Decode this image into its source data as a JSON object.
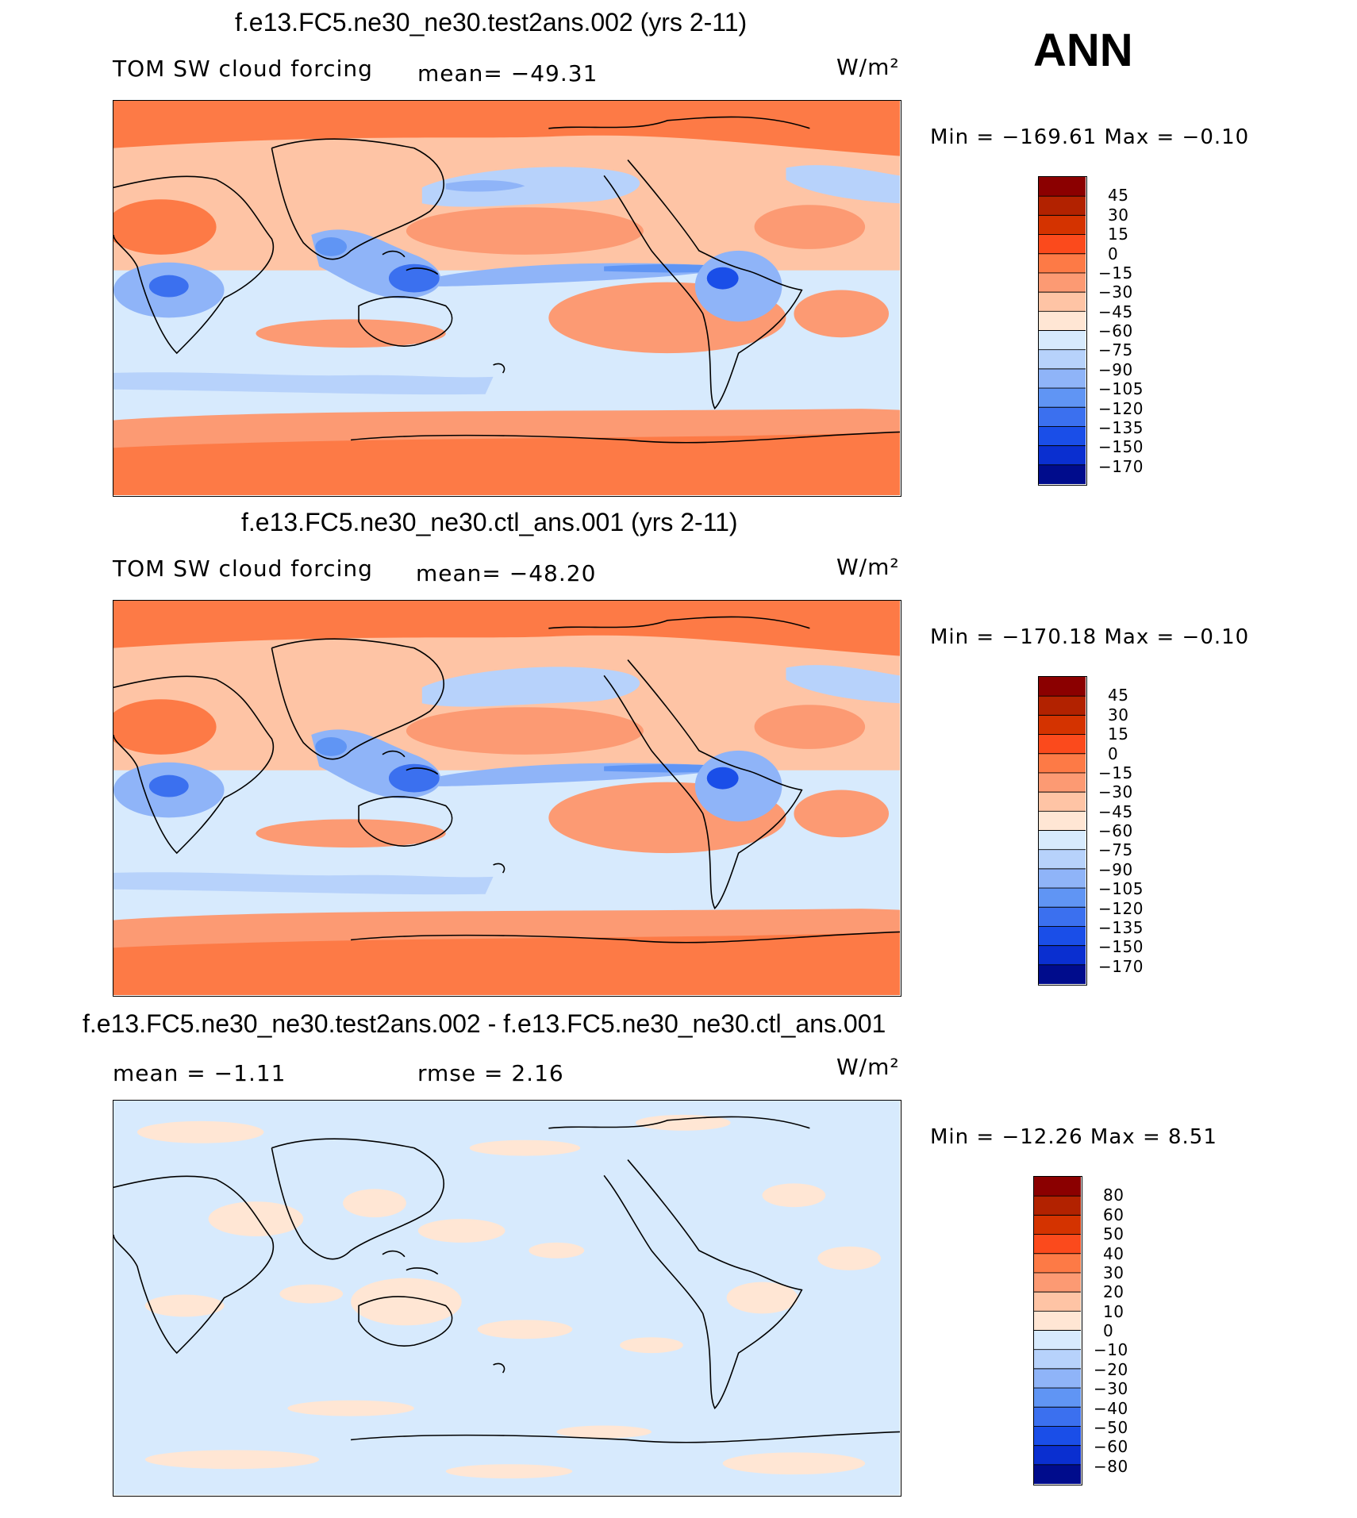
{
  "season": "ANN",
  "panels": [
    {
      "title": "f.e13.FC5.ne30_ne30.test2ans.002 (yrs 2-11)",
      "variable": "TOM SW cloud forcing",
      "stat1": "mean= −49.31",
      "stat2": "",
      "units": "W/m²",
      "minmax": "Min = −169.61 Max =   −0.10",
      "colorbar": {
        "labels": [
          "45",
          "30",
          "15",
          "0",
          "−15",
          "−30",
          "−45",
          "−60",
          "−75",
          "−90",
          "−105",
          "−120",
          "−135",
          "−150",
          "−170"
        ],
        "colors": [
          "#8b0000",
          "#b22200",
          "#d43300",
          "#fb4a1c",
          "#fd7a46",
          "#fc9a73",
          "#fec4a5",
          "#ffe6d4",
          "#d7eafd",
          "#b7d2fb",
          "#8fb4f8",
          "#6095f4",
          "#3b70ef",
          "#1a4ee8",
          "#0a2fd0",
          "#000c8c"
        ]
      }
    },
    {
      "title": "f.e13.FC5.ne30_ne30.ctl_ans.001 (yrs 2-11)",
      "variable": "TOM SW cloud forcing",
      "stat1": "mean= −48.20",
      "stat2": "",
      "units": "W/m²",
      "minmax": "Min = −170.18 Max =   −0.10",
      "colorbar": {
        "labels": [
          "45",
          "30",
          "15",
          "0",
          "−15",
          "−30",
          "−45",
          "−60",
          "−75",
          "−90",
          "−105",
          "−120",
          "−135",
          "−150",
          "−170"
        ],
        "colors": [
          "#8b0000",
          "#b22200",
          "#d43300",
          "#fb4a1c",
          "#fd7a46",
          "#fc9a73",
          "#fec4a5",
          "#ffe6d4",
          "#d7eafd",
          "#b7d2fb",
          "#8fb4f8",
          "#6095f4",
          "#3b70ef",
          "#1a4ee8",
          "#0a2fd0",
          "#000c8c"
        ]
      }
    },
    {
      "title": "f.e13.FC5.ne30_ne30.test2ans.002 - f.e13.FC5.ne30_ne30.ctl_ans.001",
      "variable": "",
      "stat1": "mean =   −1.11",
      "stat2": "rmse =    2.16",
      "units": "W/m²",
      "minmax": "Min = −12.26 Max =    8.51",
      "colorbar": {
        "labels": [
          "80",
          "60",
          "50",
          "40",
          "30",
          "20",
          "10",
          "0",
          "−10",
          "−20",
          "−30",
          "−40",
          "−50",
          "−60",
          "−80"
        ],
        "colors": [
          "#8b0000",
          "#b22200",
          "#d43300",
          "#fb4a1c",
          "#fd7a46",
          "#fc9a73",
          "#fec4a5",
          "#ffe6d4",
          "#d7eafd",
          "#b7d2fb",
          "#8fb4f8",
          "#6095f4",
          "#3b70ef",
          "#1a4ee8",
          "#0a2fd0",
          "#000c8c"
        ]
      }
    }
  ],
  "chart_data": [
    {
      "type": "heatmap",
      "title": "f.e13.FC5.ne30_ne30.test2ans.002 (yrs 2-11)",
      "field": "TOM SW cloud forcing",
      "units": "W/m²",
      "mean": -49.31,
      "min": -169.61,
      "max": -0.1,
      "contour_levels": [
        -170,
        -150,
        -135,
        -120,
        -105,
        -90,
        -75,
        -60,
        -45,
        -30,
        -15,
        0,
        15,
        30,
        45
      ]
    },
    {
      "type": "heatmap",
      "title": "f.e13.FC5.ne30_ne30.ctl_ans.001 (yrs 2-11)",
      "field": "TOM SW cloud forcing",
      "units": "W/m²",
      "mean": -48.2,
      "min": -170.18,
      "max": -0.1,
      "contour_levels": [
        -170,
        -150,
        -135,
        -120,
        -105,
        -90,
        -75,
        -60,
        -45,
        -30,
        -15,
        0,
        15,
        30,
        45
      ]
    },
    {
      "type": "heatmap",
      "title": "f.e13.FC5.ne30_ne30.test2ans.002 - f.e13.FC5.ne30_ne30.ctl_ans.001",
      "units": "W/m²",
      "mean": -1.11,
      "rmse": 2.16,
      "min": -12.26,
      "max": 8.51,
      "contour_levels": [
        -80,
        -60,
        -50,
        -40,
        -30,
        -20,
        -10,
        0,
        10,
        20,
        30,
        40,
        50,
        60,
        80
      ]
    }
  ]
}
